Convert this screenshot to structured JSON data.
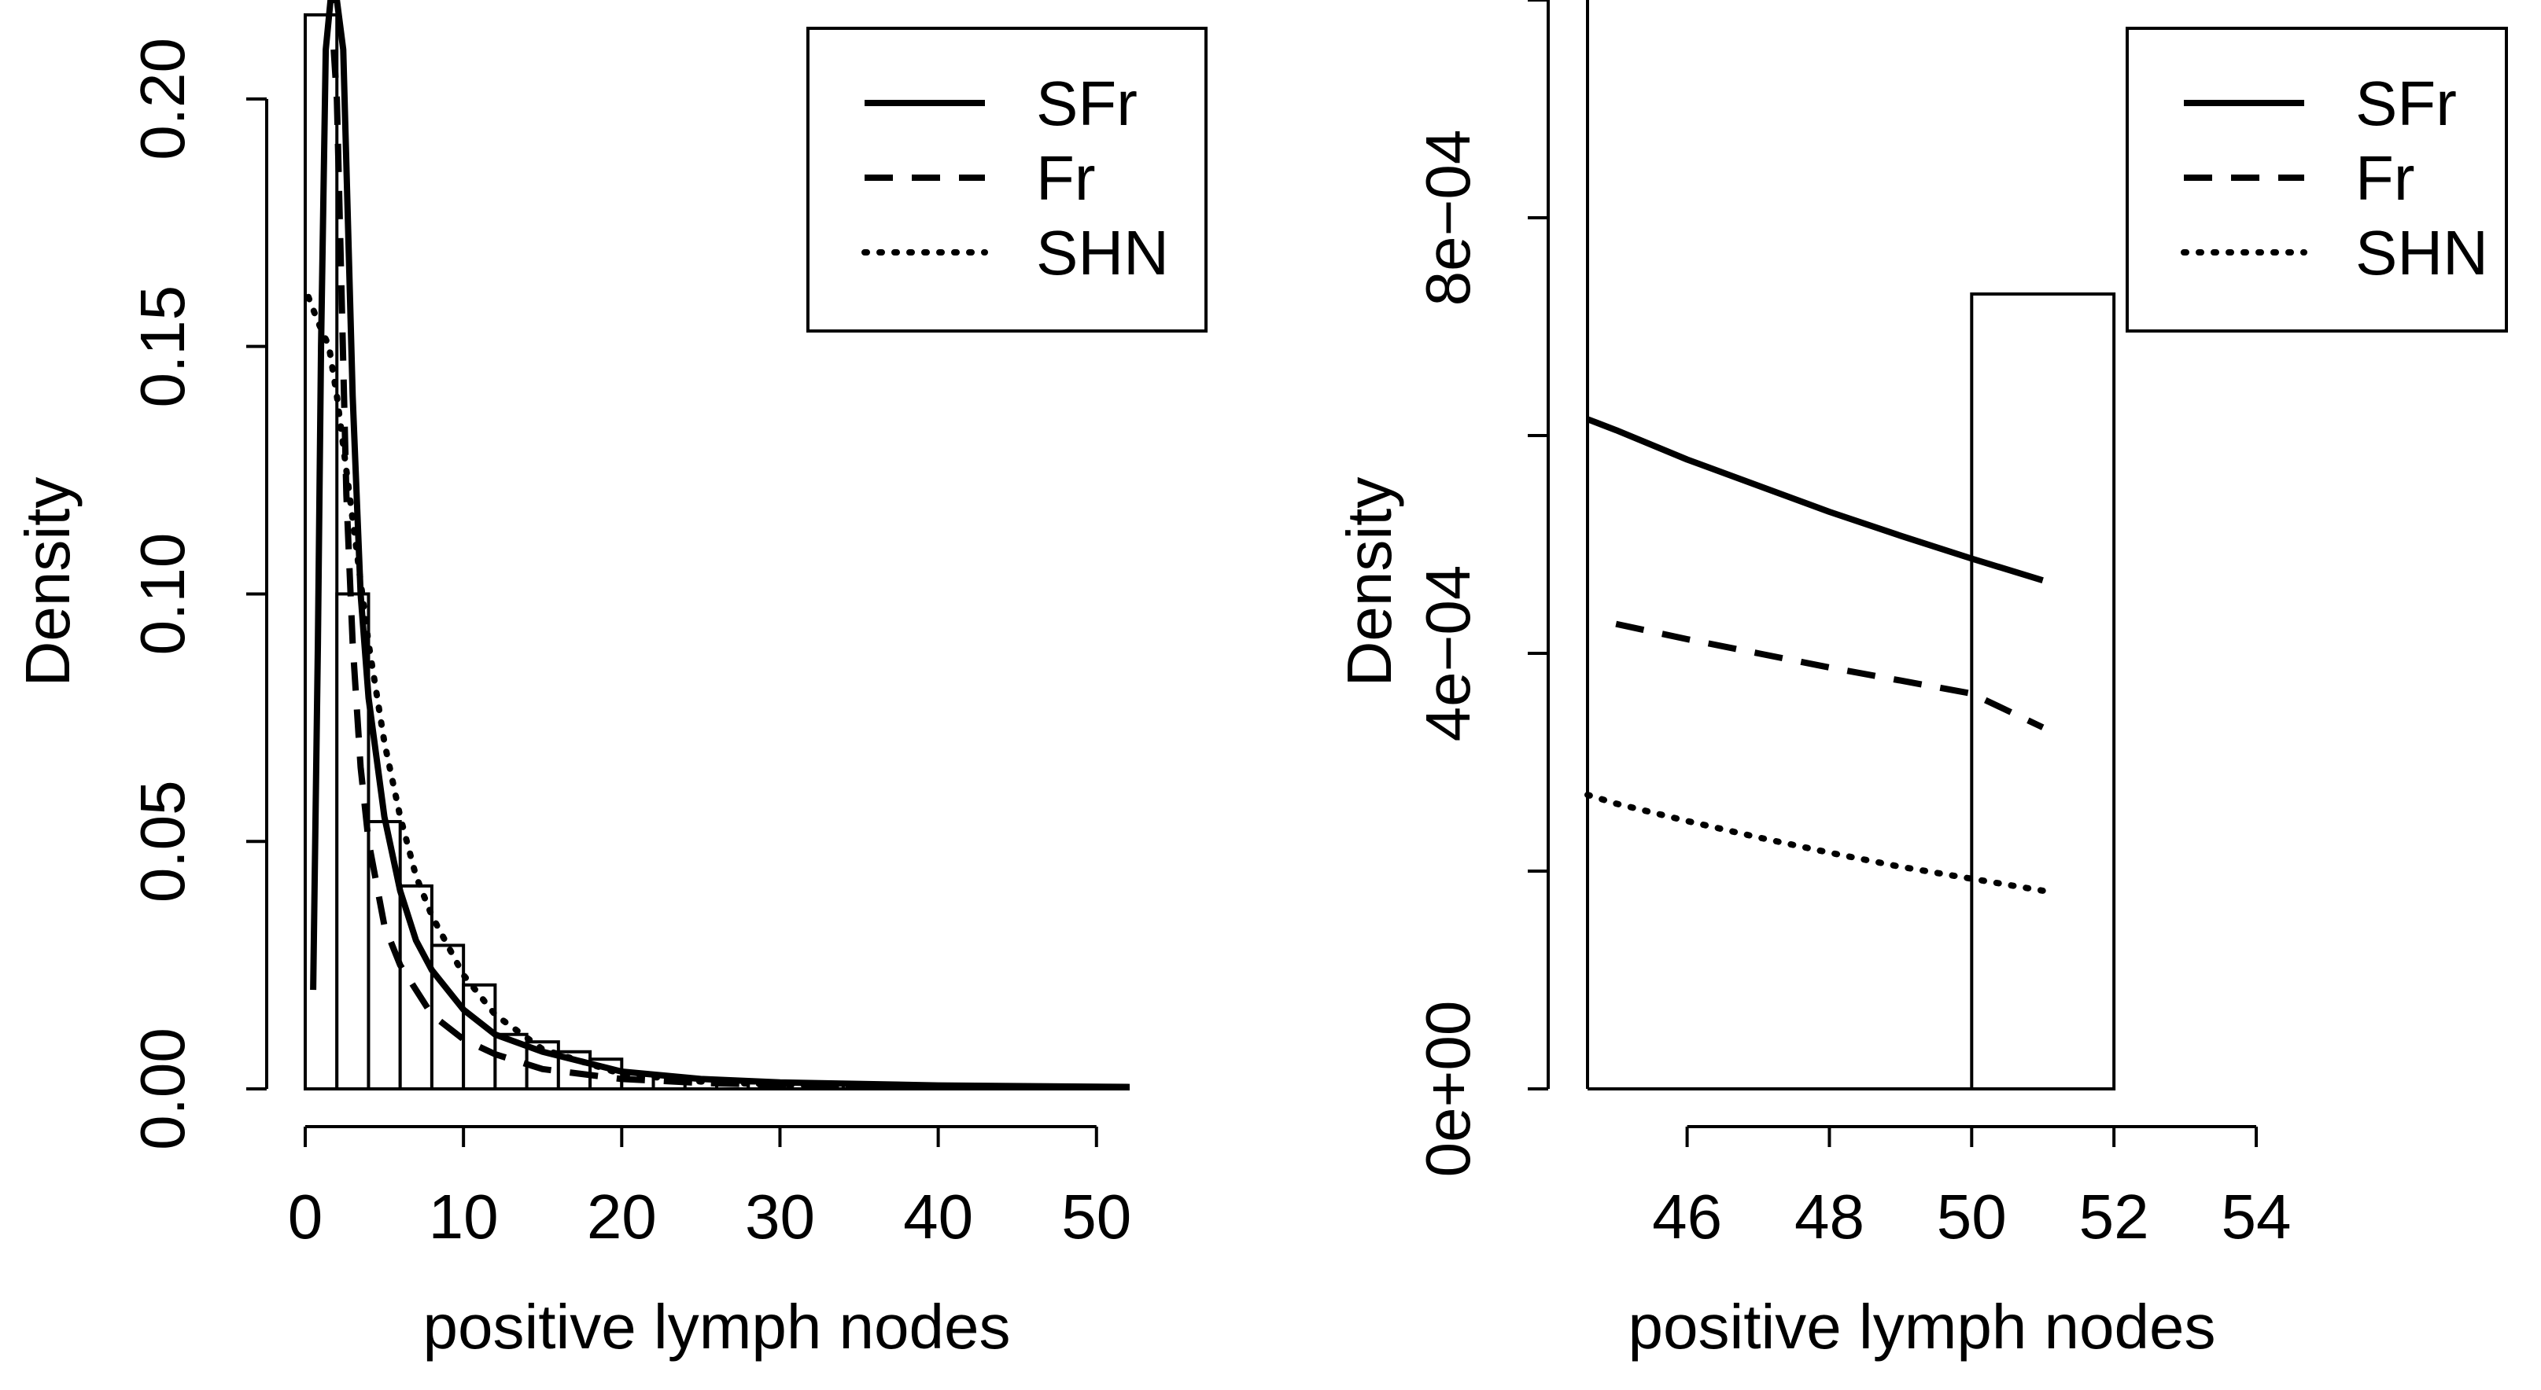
{
  "chart_data": [
    {
      "type": "histogram",
      "xlabel": "positive lymph nodes",
      "ylabel": "Density",
      "xlim": [
        0,
        52
      ],
      "ylim": [
        0,
        0.22
      ],
      "xticks": [
        "0",
        "10",
        "20",
        "30",
        "40",
        "50"
      ],
      "xtick_values": [
        0,
        10,
        20,
        30,
        40,
        50
      ],
      "yticks": [
        "0.00",
        "0.05",
        "0.10",
        "0.15",
        "0.20"
      ],
      "ytick_values": [
        0,
        0.05,
        0.1,
        0.15,
        0.2
      ],
      "bins": [
        {
          "x0": 0,
          "x1": 2,
          "value": 0.217
        },
        {
          "x0": 2,
          "x1": 4,
          "value": 0.1
        },
        {
          "x0": 4,
          "x1": 6,
          "value": 0.054
        },
        {
          "x0": 6,
          "x1": 8,
          "value": 0.041
        },
        {
          "x0": 8,
          "x1": 10,
          "value": 0.029
        },
        {
          "x0": 10,
          "x1": 12,
          "value": 0.021
        },
        {
          "x0": 12,
          "x1": 14,
          "value": 0.011
        },
        {
          "x0": 14,
          "x1": 16,
          "value": 0.0095
        },
        {
          "x0": 16,
          "x1": 18,
          "value": 0.0075
        },
        {
          "x0": 18,
          "x1": 20,
          "value": 0.006
        },
        {
          "x0": 20,
          "x1": 22,
          "value": 0.003
        },
        {
          "x0": 22,
          "x1": 24,
          "value": 0.0025
        },
        {
          "x0": 24,
          "x1": 26,
          "value": 0.002
        },
        {
          "x0": 26,
          "x1": 28,
          "value": 0.0015
        },
        {
          "x0": 28,
          "x1": 30,
          "value": 0.0012
        },
        {
          "x0": 30,
          "x1": 32,
          "value": 0.001
        },
        {
          "x0": 32,
          "x1": 34,
          "value": 0.0008
        },
        {
          "x0": 34,
          "x1": 36,
          "value": 0.0007
        },
        {
          "x0": 36,
          "x1": 38,
          "value": 0.0005
        },
        {
          "x0": 38,
          "x1": 40,
          "value": 0.0004
        },
        {
          "x0": 40,
          "x1": 42,
          "value": 0.0003
        },
        {
          "x0": 42,
          "x1": 44,
          "value": 0.0003
        },
        {
          "x0": 44,
          "x1": 46,
          "value": 0.0002
        },
        {
          "x0": 46,
          "x1": 48,
          "value": 0.0002
        },
        {
          "x0": 48,
          "x1": 50,
          "value": 0.0002
        },
        {
          "x0": 50,
          "x1": 52,
          "value": 0.0007
        }
      ],
      "series": [
        {
          "name": "SFr",
          "style": "solid",
          "x": [
            0.5,
            0.8,
            1.0,
            1.3,
            1.6,
            2.0,
            2.4,
            3.0,
            3.5,
            4.0,
            5.0,
            6.0,
            7.0,
            8.0,
            10.0,
            12.0,
            15.0,
            20.0,
            25.0,
            30.0,
            40.0,
            52.0
          ],
          "y": [
            0.02,
            0.09,
            0.15,
            0.21,
            0.22,
            0.22,
            0.21,
            0.14,
            0.1,
            0.079,
            0.055,
            0.04,
            0.03,
            0.024,
            0.016,
            0.011,
            0.0075,
            0.0035,
            0.002,
            0.0013,
            0.0007,
            0.0004
          ]
        },
        {
          "name": "Fr",
          "style": "dashed",
          "x": [
            1.8,
            2.0,
            2.3,
            2.6,
            3.0,
            3.5,
            4.0,
            5.0,
            6.0,
            7.0,
            8.0,
            10.0,
            12.0,
            15.0,
            20.0,
            25.0,
            30.0,
            40.0,
            52.0
          ],
          "y": [
            0.21,
            0.2,
            0.16,
            0.12,
            0.09,
            0.065,
            0.05,
            0.033,
            0.025,
            0.02,
            0.015,
            0.01,
            0.007,
            0.004,
            0.002,
            0.0012,
            0.0008,
            0.0005,
            0.0003
          ]
        },
        {
          "name": "SHN",
          "style": "dotted",
          "x": [
            0.2,
            0.8,
            1.5,
            2.0,
            3.0,
            4.0,
            5.0,
            6.0,
            7.0,
            8.0,
            10.0,
            12.0,
            15.0,
            20.0,
            25.0,
            30.0,
            40.0,
            52.0
          ],
          "y": [
            0.16,
            0.155,
            0.15,
            0.14,
            0.115,
            0.09,
            0.07,
            0.055,
            0.043,
            0.035,
            0.023,
            0.015,
            0.008,
            0.003,
            0.0015,
            0.0008,
            0.0003,
            0.0001
          ]
        }
      ],
      "legend": {
        "position": "top-right",
        "entries": [
          "SFr",
          "Fr",
          "SHN"
        ]
      }
    },
    {
      "type": "histogram",
      "xlabel": "positive lymph nodes",
      "ylabel": "Density",
      "xlim": [
        44.6,
        54
      ],
      "ylim": [
        0,
        0.001
      ],
      "xticks": [
        "46",
        "48",
        "50",
        "52",
        "54"
      ],
      "xtick_values": [
        46,
        48,
        50,
        52,
        54
      ],
      "yticks": [
        "0e+00",
        "4e−04",
        "8e−04"
      ],
      "ytick_values": [
        0,
        0.0004,
        0.0008
      ],
      "yticks_minor": [
        0.0002,
        0.0006,
        0.001
      ],
      "bins": [
        {
          "x0": 50,
          "x1": 52,
          "value": 0.00073
        }
      ],
      "series": [
        {
          "name": "SFr",
          "style": "solid",
          "x": [
            44.6,
            45,
            46,
            47,
            48,
            49,
            50,
            51
          ],
          "y": [
            0.000615,
            0.000605,
            0.000578,
            0.000554,
            0.00053,
            0.000508,
            0.000487,
            0.000467
          ]
        },
        {
          "name": "Fr",
          "style": "dashed",
          "x": [
            45,
            46,
            47,
            48,
            49,
            50,
            51
          ],
          "y": [
            0.000427,
            0.000413,
            0.0004,
            0.000387,
            0.000375,
            0.000363,
            0.000332
          ]
        },
        {
          "name": "SHN",
          "style": "dotted",
          "x": [
            44.6,
            45,
            46,
            47,
            48,
            49,
            50,
            51
          ],
          "y": [
            0.00027,
            0.000262,
            0.000246,
            0.000231,
            0.000217,
            0.000204,
            0.000193,
            0.000182
          ]
        }
      ],
      "legend": {
        "position": "top-right",
        "entries": [
          "SFr",
          "Fr",
          "SHN"
        ]
      }
    }
  ]
}
